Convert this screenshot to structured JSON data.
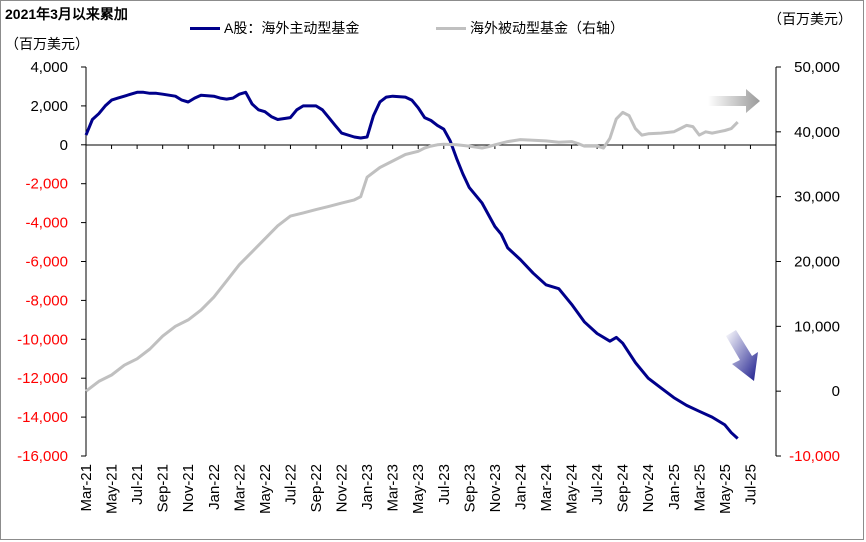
{
  "title": "2021年3月以来累加",
  "chart_data": {
    "type": "line",
    "left_axis": {
      "label": "（百万美元）",
      "ticks": [
        "4,000",
        "2,000",
        "0",
        "-2,000",
        "-4,000",
        "-6,000",
        "-8,000",
        "-10,000",
        "-12,000",
        "-14,000",
        "-16,000"
      ],
      "tick_values": [
        4000,
        2000,
        0,
        -2000,
        -4000,
        -6000,
        -8000,
        -10000,
        -12000,
        -14000,
        -16000
      ],
      "ylim": [
        -16000,
        4000
      ],
      "negative_color": "#ff0000"
    },
    "right_axis": {
      "label": "（百万美元）",
      "ticks": [
        "50,000",
        "40,000",
        "30,000",
        "20,000",
        "10,000",
        "0",
        "-10,000"
      ],
      "tick_values": [
        50000,
        40000,
        30000,
        20000,
        10000,
        0,
        -10000
      ],
      "ylim": [
        -10000,
        50000
      ],
      "negative_color": "#ff0000"
    },
    "x_ticks": [
      "Mar-21",
      "May-21",
      "Jul-21",
      "Sep-21",
      "Nov-21",
      "Jan-22",
      "Mar-22",
      "May-22",
      "Jul-22",
      "Sep-22",
      "Nov-22",
      "Jan-23",
      "Mar-23",
      "May-23",
      "Jul-23",
      "Sep-23",
      "Nov-23",
      "Jan-24",
      "Mar-24",
      "May-24",
      "Jul-24",
      "Sep-24",
      "Nov-24",
      "Jan-25",
      "Mar-25",
      "May-25",
      "Jul-25"
    ],
    "x_months_range": [
      0,
      54
    ],
    "series": [
      {
        "name": "A股：海外主动型基金",
        "axis": "left",
        "color": "#00008b",
        "points": [
          [
            0,
            500
          ],
          [
            0.5,
            1300
          ],
          [
            1,
            1600
          ],
          [
            1.5,
            2000
          ],
          [
            2,
            2300
          ],
          [
            2.5,
            2400
          ],
          [
            3,
            2500
          ],
          [
            3.5,
            2600
          ],
          [
            4,
            2700
          ],
          [
            4.5,
            2700
          ],
          [
            5,
            2650
          ],
          [
            5.5,
            2650
          ],
          [
            6,
            2600
          ],
          [
            7,
            2500
          ],
          [
            7.5,
            2300
          ],
          [
            8,
            2200
          ],
          [
            8.5,
            2400
          ],
          [
            9,
            2550
          ],
          [
            10,
            2500
          ],
          [
            10.5,
            2400
          ],
          [
            11,
            2350
          ],
          [
            11.5,
            2400
          ],
          [
            12,
            2600
          ],
          [
            12.5,
            2700
          ],
          [
            13,
            2100
          ],
          [
            13.5,
            1800
          ],
          [
            14,
            1700
          ],
          [
            14.5,
            1450
          ],
          [
            15,
            1300
          ],
          [
            16,
            1400
          ],
          [
            16.5,
            1800
          ],
          [
            17,
            2000
          ],
          [
            18,
            2000
          ],
          [
            18.5,
            1800
          ],
          [
            19,
            1400
          ],
          [
            19.5,
            1000
          ],
          [
            20,
            600
          ],
          [
            21,
            400
          ],
          [
            21.5,
            350
          ],
          [
            22,
            400
          ],
          [
            22.5,
            1500
          ],
          [
            23,
            2200
          ],
          [
            23.5,
            2450
          ],
          [
            24,
            2500
          ],
          [
            25,
            2450
          ],
          [
            25.5,
            2300
          ],
          [
            26,
            1900
          ],
          [
            26.5,
            1400
          ],
          [
            27,
            1250
          ],
          [
            27.5,
            1000
          ],
          [
            28,
            800
          ],
          [
            28.5,
            200
          ],
          [
            29,
            -700
          ],
          [
            29.5,
            -1500
          ],
          [
            30,
            -2200
          ],
          [
            31,
            -3000
          ],
          [
            32,
            -4200
          ],
          [
            32.5,
            -4600
          ],
          [
            33,
            -5300
          ],
          [
            34,
            -5900
          ],
          [
            35,
            -6600
          ],
          [
            36,
            -7200
          ],
          [
            37,
            -7400
          ],
          [
            38,
            -8200
          ],
          [
            39,
            -9100
          ],
          [
            40,
            -9700
          ],
          [
            41,
            -10100
          ],
          [
            41.5,
            -9900
          ],
          [
            42,
            -10200
          ],
          [
            43,
            -11200
          ],
          [
            44,
            -12000
          ],
          [
            45,
            -12500
          ],
          [
            46,
            -13000
          ],
          [
            47,
            -13400
          ],
          [
            48,
            -13700
          ],
          [
            49,
            -14000
          ],
          [
            50,
            -14400
          ],
          [
            50.5,
            -14800
          ],
          [
            51,
            -15100
          ]
        ]
      },
      {
        "name": "海外被动型基金（右轴）",
        "axis": "right",
        "color": "#c0c0c0",
        "points": [
          [
            0,
            0
          ],
          [
            1,
            1500
          ],
          [
            2,
            2500
          ],
          [
            3,
            4000
          ],
          [
            4,
            5000
          ],
          [
            5,
            6500
          ],
          [
            6,
            8500
          ],
          [
            7,
            10000
          ],
          [
            8,
            11000
          ],
          [
            9,
            12500
          ],
          [
            10,
            14500
          ],
          [
            11,
            17000
          ],
          [
            12,
            19500
          ],
          [
            13,
            21500
          ],
          [
            14,
            23500
          ],
          [
            15,
            25500
          ],
          [
            16,
            27000
          ],
          [
            17,
            27500
          ],
          [
            18,
            28000
          ],
          [
            19,
            28500
          ],
          [
            20,
            29000
          ],
          [
            21,
            29500
          ],
          [
            21.5,
            30000
          ],
          [
            22,
            33000
          ],
          [
            23,
            34500
          ],
          [
            24,
            35500
          ],
          [
            25,
            36500
          ],
          [
            26,
            37000
          ],
          [
            26.5,
            37500
          ],
          [
            27,
            37800
          ],
          [
            27.5,
            38000
          ],
          [
            28,
            38100
          ],
          [
            29,
            38000
          ],
          [
            30,
            37800
          ],
          [
            31,
            37500
          ],
          [
            31.5,
            37700
          ],
          [
            32,
            38000
          ],
          [
            33,
            38500
          ],
          [
            34,
            38800
          ],
          [
            35,
            38700
          ],
          [
            36,
            38600
          ],
          [
            37,
            38400
          ],
          [
            38,
            38500
          ],
          [
            38.5,
            38200
          ],
          [
            39,
            37800
          ],
          [
            40,
            37800
          ],
          [
            40.5,
            37500
          ],
          [
            41,
            39000
          ],
          [
            41.5,
            42000
          ],
          [
            42,
            43000
          ],
          [
            42.5,
            42500
          ],
          [
            43,
            40500
          ],
          [
            43.5,
            39500
          ],
          [
            44,
            39700
          ],
          [
            45,
            39800
          ],
          [
            46,
            40000
          ],
          [
            46.5,
            40500
          ],
          [
            47,
            41000
          ],
          [
            47.5,
            40800
          ],
          [
            48,
            39500
          ],
          [
            48.5,
            40000
          ],
          [
            49,
            39800
          ],
          [
            49.5,
            40000
          ],
          [
            50,
            40200
          ],
          [
            50.5,
            40500
          ],
          [
            51,
            41500
          ]
        ]
      }
    ],
    "annotations": [
      {
        "type": "arrow",
        "direction": "right",
        "near_series": "海外被动型基金（右轴）"
      },
      {
        "type": "arrow",
        "direction": "down-right",
        "near_series": "A股：海外主动型基金"
      }
    ]
  }
}
